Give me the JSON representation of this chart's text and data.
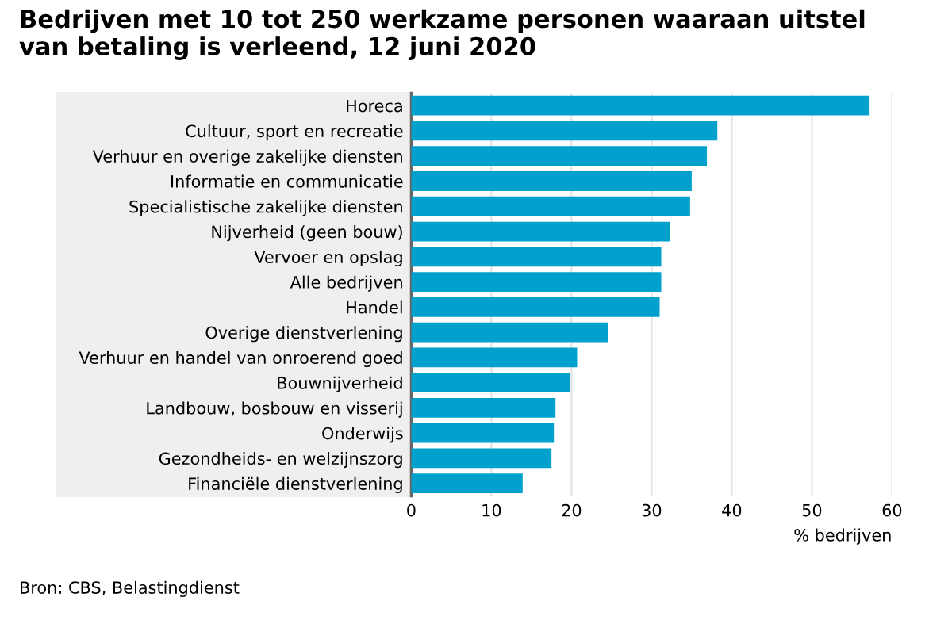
{
  "chart_data": {
    "type": "bar",
    "orientation": "horizontal",
    "title": "Bedrijven met 10 tot 250 werkzame personen waaraan uitstel\nvan betaling is verleend, 12 juni 2020",
    "categories": [
      "Horeca",
      "Cultuur, sport en recreatie",
      "Verhuur en overige zakelijke diensten",
      "Informatie en communicatie",
      "Specialistische zakelijke diensten",
      "Nijverheid (geen bouw)",
      "Vervoer en opslag",
      "Alle bedrijven",
      "Handel",
      "Overige dienstverlening",
      "Verhuur en handel van onroerend goed",
      "Bouwnijverheid",
      "Landbouw, bosbouw en visserij",
      "Onderwijs",
      "Gezondheids- en welzijnszorg",
      "Financiële dienstverlening"
    ],
    "values": [
      57.2,
      38.2,
      36.9,
      35.0,
      34.8,
      32.3,
      31.2,
      31.2,
      31.0,
      24.6,
      20.7,
      19.8,
      18.0,
      17.8,
      17.5,
      13.9
    ],
    "color": "#00a1cd",
    "xlim": [
      0,
      60
    ],
    "xticks": [
      0,
      10,
      20,
      30,
      40,
      50,
      60
    ],
    "grid": "x",
    "xlabel": "% bedrijven",
    "annotations": [
      "Bron: CBS, Belastingdienst"
    ]
  }
}
